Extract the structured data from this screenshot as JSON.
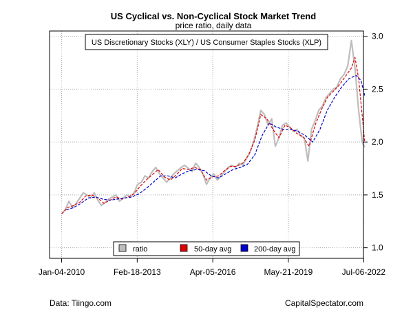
{
  "chart_data": {
    "type": "line",
    "title": "US Cyclical vs. Non-Cyclical Stock Market Trend",
    "subtitle": "price ratio, daily data",
    "annotation": "US Discretionary Stocks (XLY) / US Consumer Staples Stocks (XLP)",
    "x_ticks": [
      "Jan-04-2010",
      "Feb-18-2013",
      "Apr-05-2016",
      "May-21-2019",
      "Jul-06-2022"
    ],
    "y_ticks": [
      "1.0",
      "1.5",
      "2.0",
      "2.5",
      "3.0"
    ],
    "ylim": [
      0.9,
      3.05
    ],
    "xlim": [
      2009.5,
      2022.5
    ],
    "grid": true,
    "legend": {
      "placement": "bottom-center",
      "entries": [
        "ratio",
        "50-day avg",
        "200-day avg"
      ]
    },
    "colors": {
      "ratio": "#bebebe",
      "ma50": "#e00000",
      "ma200": "#0000cc"
    },
    "series": [
      {
        "name": "ratio",
        "x": [
          2010.0,
          2010.15,
          2010.3,
          2010.45,
          2010.6,
          2010.75,
          2010.9,
          2011.05,
          2011.2,
          2011.35,
          2011.5,
          2011.65,
          2011.8,
          2011.95,
          2012.1,
          2012.25,
          2012.4,
          2012.55,
          2012.7,
          2012.85,
          2013.0,
          2013.15,
          2013.3,
          2013.45,
          2013.6,
          2013.75,
          2013.9,
          2014.05,
          2014.2,
          2014.35,
          2014.5,
          2014.65,
          2014.8,
          2014.95,
          2015.1,
          2015.25,
          2015.4,
          2015.55,
          2015.7,
          2015.85,
          2016.0,
          2016.15,
          2016.3,
          2016.45,
          2016.6,
          2016.75,
          2016.9,
          2017.05,
          2017.2,
          2017.35,
          2017.5,
          2017.65,
          2017.8,
          2017.95,
          2018.1,
          2018.25,
          2018.4,
          2018.55,
          2018.7,
          2018.85,
          2019.0,
          2019.15,
          2019.3,
          2019.45,
          2019.6,
          2019.75,
          2019.9,
          2020.05,
          2020.2,
          2020.35,
          2020.5,
          2020.65,
          2020.8,
          2020.95,
          2021.1,
          2021.25,
          2021.4,
          2021.55,
          2021.7,
          2021.85,
          2022.0,
          2022.15,
          2022.3,
          2022.45,
          2022.55
        ],
        "values": [
          1.32,
          1.36,
          1.44,
          1.38,
          1.42,
          1.47,
          1.52,
          1.5,
          1.47,
          1.52,
          1.45,
          1.4,
          1.43,
          1.46,
          1.48,
          1.5,
          1.44,
          1.47,
          1.5,
          1.48,
          1.52,
          1.6,
          1.62,
          1.68,
          1.66,
          1.72,
          1.76,
          1.7,
          1.66,
          1.62,
          1.66,
          1.7,
          1.73,
          1.76,
          1.78,
          1.75,
          1.72,
          1.8,
          1.76,
          1.7,
          1.6,
          1.66,
          1.7,
          1.64,
          1.68,
          1.72,
          1.76,
          1.78,
          1.76,
          1.8,
          1.78,
          1.84,
          1.9,
          2.0,
          2.14,
          2.3,
          2.26,
          2.16,
          2.22,
          1.96,
          2.04,
          2.16,
          2.18,
          2.14,
          2.1,
          2.12,
          2.06,
          2.04,
          1.82,
          2.12,
          2.2,
          2.3,
          2.34,
          2.42,
          2.46,
          2.5,
          2.52,
          2.6,
          2.64,
          2.72,
          2.96,
          2.7,
          2.3,
          2.0,
          1.95
        ]
      },
      {
        "name": "50-day avg",
        "x": [
          2010.0,
          2010.25,
          2010.5,
          2010.75,
          2011.0,
          2011.25,
          2011.5,
          2011.75,
          2012.0,
          2012.25,
          2012.5,
          2012.75,
          2013.0,
          2013.25,
          2013.5,
          2013.75,
          2014.0,
          2014.25,
          2014.5,
          2014.75,
          2015.0,
          2015.25,
          2015.5,
          2015.75,
          2016.0,
          2016.25,
          2016.5,
          2016.75,
          2017.0,
          2017.25,
          2017.5,
          2017.75,
          2018.0,
          2018.25,
          2018.5,
          2018.75,
          2019.0,
          2019.25,
          2019.5,
          2019.75,
          2020.0,
          2020.25,
          2020.5,
          2020.75,
          2021.0,
          2021.25,
          2021.5,
          2021.75,
          2022.0,
          2022.15,
          2022.3,
          2022.45,
          2022.55
        ],
        "values": [
          1.32,
          1.38,
          1.4,
          1.43,
          1.49,
          1.5,
          1.47,
          1.42,
          1.45,
          1.48,
          1.46,
          1.48,
          1.51,
          1.58,
          1.64,
          1.69,
          1.74,
          1.67,
          1.64,
          1.69,
          1.75,
          1.74,
          1.76,
          1.74,
          1.64,
          1.67,
          1.68,
          1.73,
          1.77,
          1.77,
          1.8,
          1.88,
          2.02,
          2.26,
          2.22,
          2.12,
          2.04,
          2.16,
          2.13,
          2.08,
          2.05,
          1.96,
          2.16,
          2.3,
          2.42,
          2.48,
          2.54,
          2.62,
          2.7,
          2.8,
          2.6,
          2.25,
          2.0
        ]
      },
      {
        "name": "200-day avg",
        "x": [
          2010.2,
          2010.5,
          2010.8,
          2011.1,
          2011.4,
          2011.7,
          2012.0,
          2012.3,
          2012.6,
          2012.9,
          2013.2,
          2013.5,
          2013.8,
          2014.1,
          2014.4,
          2014.7,
          2015.0,
          2015.3,
          2015.6,
          2015.9,
          2016.2,
          2016.5,
          2016.8,
          2017.1,
          2017.4,
          2017.7,
          2018.0,
          2018.3,
          2018.6,
          2018.9,
          2019.2,
          2019.5,
          2019.8,
          2020.1,
          2020.4,
          2020.7,
          2021.0,
          2021.3,
          2021.6,
          2021.9,
          2022.2,
          2022.4,
          2022.55
        ],
        "values": [
          1.36,
          1.38,
          1.42,
          1.47,
          1.48,
          1.46,
          1.45,
          1.46,
          1.47,
          1.48,
          1.51,
          1.56,
          1.62,
          1.68,
          1.68,
          1.66,
          1.7,
          1.73,
          1.74,
          1.73,
          1.68,
          1.66,
          1.7,
          1.74,
          1.76,
          1.79,
          1.88,
          2.06,
          2.18,
          2.14,
          2.12,
          2.12,
          2.1,
          2.06,
          2.0,
          2.12,
          2.3,
          2.42,
          2.52,
          2.6,
          2.63,
          2.58,
          2.44
        ]
      }
    ]
  },
  "footer": {
    "source": "Data: Tiingo.com",
    "credit": "CapitalSpectator.com"
  }
}
